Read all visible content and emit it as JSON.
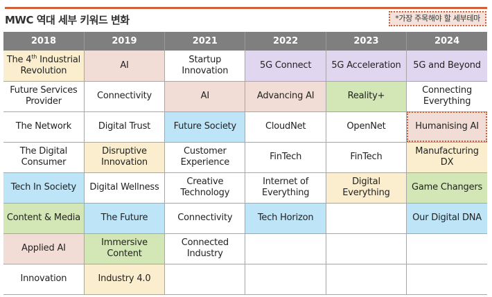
{
  "header": {
    "title": "MWC 역대 세부 키워드 변화",
    "note": "*가장 주목해야 할 세부테마",
    "accent_color": "#d0603a"
  },
  "legend_colors": {
    "white": "#ffffff",
    "yellow": "#fbeecf",
    "pink": "#f1ddd5",
    "purple": "#e0d6ef",
    "green": "#d3e6b5",
    "blue": "#bde4f7"
  },
  "table": {
    "columns": [
      "2018",
      "2019",
      "2021",
      "2022",
      "2023",
      "2024"
    ],
    "rows": [
      [
        {
          "text": "The 4th Industrial Revolution",
          "line1a": "The 4",
          "sup": "th",
          "line1b": " Industrial",
          "line2": "Revolution",
          "color": "yellow"
        },
        {
          "text": "AI",
          "color": "pink"
        },
        {
          "text": "Startup Innovation",
          "line1": "Startup",
          "line2": "Innovation",
          "color": "white"
        },
        {
          "text": "5G Connect",
          "color": "purple"
        },
        {
          "text": "5G Acceleration",
          "color": "purple"
        },
        {
          "text": "5G and Beyond",
          "color": "purple"
        }
      ],
      [
        {
          "text": "Future Services Provider",
          "line1": "Future Services",
          "line2": "Provider",
          "color": "white"
        },
        {
          "text": "Connectivity",
          "color": "white"
        },
        {
          "text": "AI",
          "color": "pink"
        },
        {
          "text": "Advancing AI",
          "color": "pink"
        },
        {
          "text": "Reality+",
          "color": "green"
        },
        {
          "text": "Connecting Everything",
          "line1": "Connecting",
          "line2": "Everything",
          "color": "white"
        }
      ],
      [
        {
          "text": "The Network",
          "color": "white"
        },
        {
          "text": "Digital Trust",
          "color": "white"
        },
        {
          "text": "Future Society",
          "color": "blue"
        },
        {
          "text": "CloudNet",
          "color": "white"
        },
        {
          "text": "OpenNet",
          "color": "white"
        },
        {
          "text": "Humanising AI",
          "color": "pink",
          "highlighted": true
        }
      ],
      [
        {
          "text": "The Digital Consumer",
          "line1": "The Digital",
          "line2": "Consumer",
          "color": "white"
        },
        {
          "text": "Disruptive Innovation",
          "line1": "Disruptive",
          "line2": "Innovation",
          "color": "yellow"
        },
        {
          "text": "Customer Experience",
          "line1": "Customer",
          "line2": "Experience",
          "color": "white"
        },
        {
          "text": "FinTech",
          "color": "white"
        },
        {
          "text": "FinTech",
          "color": "white"
        },
        {
          "text": "Manufacturing DX",
          "line1": "Manufacturing",
          "line2": "DX",
          "color": "yellow"
        }
      ],
      [
        {
          "text": "Tech In Society",
          "color": "blue"
        },
        {
          "text": "Digital Wellness",
          "color": "white"
        },
        {
          "text": "Creative Technology",
          "line1": "Creative",
          "line2": "Technology",
          "color": "white"
        },
        {
          "text": "Internet of Everything",
          "line1": "Internet of",
          "line2": "Everything",
          "color": "white"
        },
        {
          "text": "Digital Everything",
          "line1": "Digital",
          "line2": "Everything",
          "color": "yellow"
        },
        {
          "text": "Game Changers",
          "color": "green"
        }
      ],
      [
        {
          "text": "Content & Media",
          "color": "green"
        },
        {
          "text": "The Future",
          "color": "blue"
        },
        {
          "text": "Connectivity",
          "color": "white"
        },
        {
          "text": "Tech Horizon",
          "color": "blue"
        },
        {
          "text": "",
          "color": "white"
        },
        {
          "text": "Our Digital DNA",
          "color": "blue"
        }
      ],
      [
        {
          "text": "Applied AI",
          "color": "pink"
        },
        {
          "text": "Immersive Content",
          "line1": "Immersive",
          "line2": "Content",
          "color": "green"
        },
        {
          "text": "Connected Industry",
          "line1": "Connected",
          "line2": "Industry",
          "color": "white"
        },
        {
          "text": "",
          "color": "white"
        },
        {
          "text": "",
          "color": "white"
        },
        {
          "text": "",
          "color": "white"
        }
      ],
      [
        {
          "text": "Innovation",
          "color": "white"
        },
        {
          "text": "Industry 4.0",
          "color": "yellow"
        },
        {
          "text": "",
          "color": "white"
        },
        {
          "text": "",
          "color": "white"
        },
        {
          "text": "",
          "color": "white"
        },
        {
          "text": "",
          "color": "white"
        }
      ]
    ]
  }
}
